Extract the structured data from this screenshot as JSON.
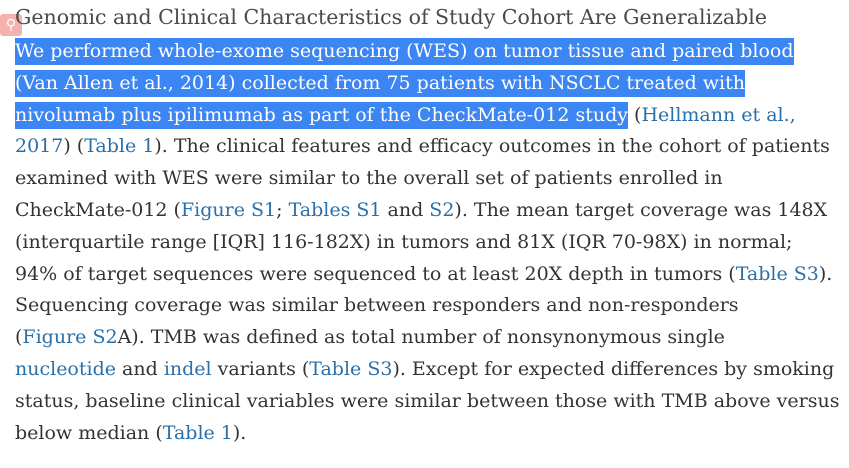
{
  "heading": "Genomic and Clinical Characteristics of Study Cohort Are Generalizable",
  "search_badge": {
    "icon": "search-icon",
    "color": "#f4a3a3"
  },
  "selection_color": "#3b86f3",
  "link_color": "#2a6fa8",
  "paragraph": {
    "l1": "We performed whole-exome sequencing (WES) on tumor tissue and paired blood",
    "l2": "(Van Allen et al., 2014) collected from 75 patients with NSCLC treated with",
    "l3a": "nivolumab plus ipilimumab as part of the CheckMate-012 study",
    "l3b": " (",
    "l3link": "Hellmann et al.,",
    "l4link": "2017",
    "l4a": ") (",
    "l4link2": "Table 1",
    "l4b": "). The clinical features and efficacy outcomes in the cohort of patients",
    "l5": "examined with WES were similar to the overall set of patients enrolled in",
    "l6a": "CheckMate-012 (",
    "l6link1": "Figure S1",
    "l6b": "; ",
    "l6link2": "Tables S1",
    "l6c": " and ",
    "l6link3": "S2",
    "l6d": "). The mean target coverage was 148X",
    "l7": "(interquartile range [IQR] 116-182X) in tumors and 81X (IQR 70-98X) in normal;",
    "l8a": "94% of target sequences were sequenced to at least 20X depth in tumors (",
    "l8link": "Table S3",
    "l8b": ").",
    "l9": "Sequencing coverage was similar between responders and non-responders",
    "l10a": "(",
    "l10link": "Figure S2",
    "l10b": "A). TMB was defined as total number of nonsynonymous single",
    "l11link1": "nucleotide",
    "l11a": " and ",
    "l11link2": "indel",
    "l11b": " variants (",
    "l11link3": "Table S3",
    "l11c": "). Except for expected differences by smoking",
    "l12": "status, baseline clinical variables were similar between those with TMB above versus",
    "l13a": "below median (",
    "l13link": "Table 1",
    "l13b": ")."
  }
}
